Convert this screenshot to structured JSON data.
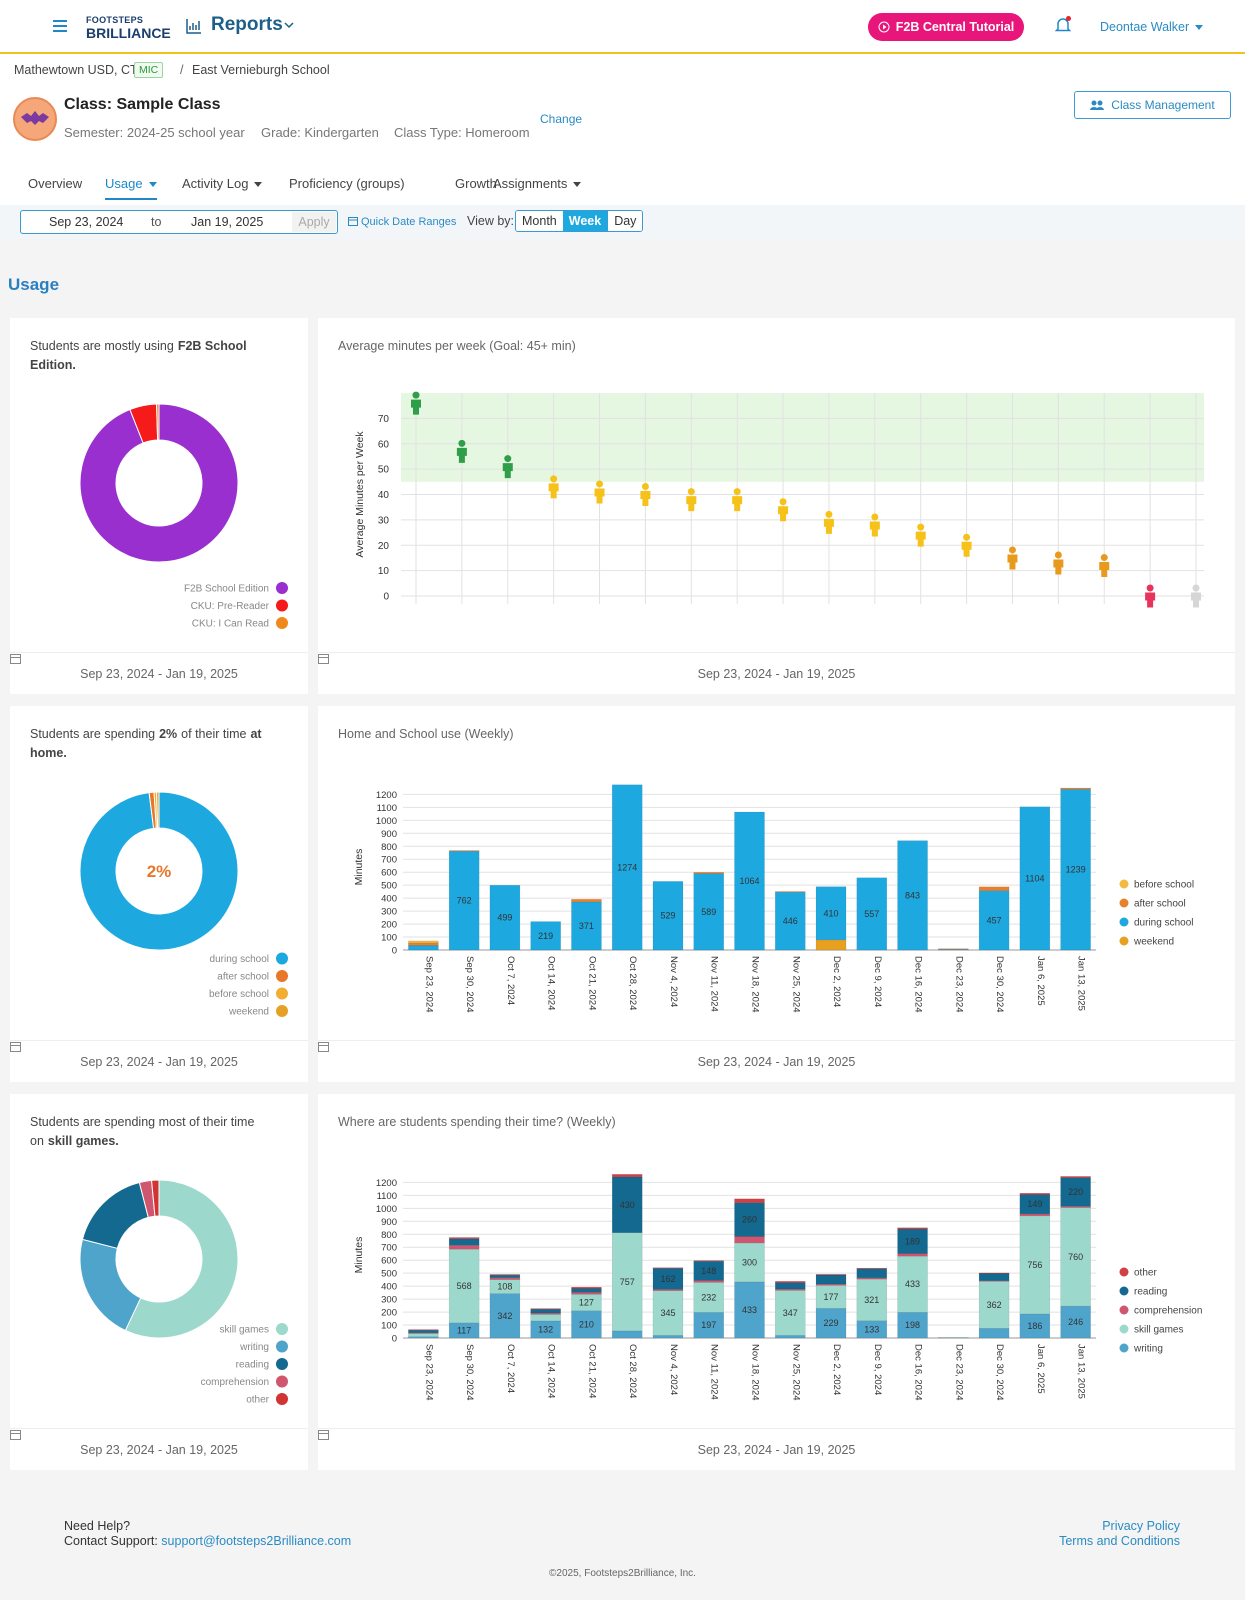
{
  "header": {
    "logo_top": "FOOTSTEPS",
    "logo_bottom": "BRILLIANCE",
    "reports": "Reports",
    "tutorial": "F2B Central Tutorial",
    "user": "Deontae Walker"
  },
  "breadcrumb": {
    "district": "Mathewtown USD, CT",
    "badge": "MIC",
    "separator": "/",
    "school": "East Vernieburgh School"
  },
  "class_info": {
    "title": "Class: Sample Class",
    "semester": "Semester: 2024-25 school year",
    "grade": "Grade: Kindergarten",
    "class_type": "Class Type: Homeroom",
    "change": "Change",
    "management": "Class Management"
  },
  "tabs": [
    "Overview",
    "Usage",
    "Activity Log",
    "Proficiency (groups)",
    "Growth",
    "Assignments"
  ],
  "filters": {
    "from": "Sep 23, 2024",
    "to_label": "to",
    "to": "Jan 19, 2025",
    "apply": "Apply",
    "quick": "Quick Date Ranges",
    "view_by": "View by:",
    "views": [
      "Month",
      "Week",
      "Day"
    ]
  },
  "section": "Usage",
  "chart_data": [
    {
      "type": "pie",
      "title": [
        "Students are mostly using",
        "F2B School Edition."
      ],
      "categories": [
        "F2B School Edition",
        "CKU: Pre-Reader",
        "CKU: I Can Read"
      ],
      "values": [
        94,
        5.5,
        0.5
      ],
      "colors": [
        "#9a2fcf",
        "#f51b1b",
        "#f0891d"
      ],
      "date_range": "Sep 23, 2024 - Jan 19, 2025"
    },
    {
      "type": "scatter",
      "title": "Average minutes per week (Goal: 45+ min)",
      "y_label": "Average Minutes per Week",
      "values": [
        76,
        57,
        51,
        43,
        41,
        40,
        38,
        38,
        34,
        29,
        28,
        24,
        20,
        15,
        13,
        12,
        0,
        0
      ],
      "colors": [
        "#2f9e4a",
        "#2f9e4a",
        "#2f9e4a",
        "#f6c21a",
        "#f6c21a",
        "#f6c21a",
        "#f6c21a",
        "#f6c21a",
        "#f6c21a",
        "#f6c21a",
        "#f6c21a",
        "#f6c21a",
        "#f6c21a",
        "#e89a1f",
        "#e89a1f",
        "#e89a1f",
        "#e8335c",
        "#d6d6d6"
      ],
      "goal": 45,
      "ylim": [
        0,
        80
      ],
      "yticks": [
        0,
        10,
        20,
        30,
        40,
        50,
        60,
        70
      ],
      "grid": true,
      "date_range": "Sep 23, 2024 - Jan 19, 2025"
    },
    {
      "type": "pie",
      "title": [
        "Students are spending",
        "2%",
        "of their time",
        "at home."
      ],
      "center_label": "2%",
      "categories": [
        "during school",
        "after school",
        "before school",
        "weekend"
      ],
      "values": [
        98,
        1,
        0.5,
        0.5
      ],
      "colors": [
        "#1ea8e0",
        "#e8772a",
        "#f2ae32",
        "#e6a026"
      ],
      "date_range": "Sep 23, 2024 - Jan 19, 2025"
    },
    {
      "type": "bar",
      "stacked": true,
      "title": "Home and School use (Weekly)",
      "y_label": "Minutes",
      "categories": [
        "Sep 23, 2024",
        "Sep 30, 2024",
        "Oct 7, 2024",
        "Oct 14, 2024",
        "Oct 21, 2024",
        "Oct 28, 2024",
        "Nov 4, 2024",
        "Nov 11, 2024",
        "Nov 18, 2024",
        "Nov 25, 2024",
        "Dec 2, 2024",
        "Dec 9, 2024",
        "Dec 16, 2024",
        "Dec 23, 2024",
        "Dec 30, 2024",
        "Jan 6, 2025",
        "Jan 13, 2025"
      ],
      "series": [
        {
          "name": "before school",
          "color": "#f5b942",
          "values": [
            15,
            0,
            0,
            0,
            0,
            0,
            0,
            0,
            0,
            0,
            0,
            0,
            0,
            0,
            0,
            0,
            0
          ]
        },
        {
          "name": "after school",
          "color": "#e8812d",
          "values": [
            20,
            5,
            0,
            0,
            20,
            0,
            0,
            10,
            0,
            5,
            0,
            0,
            0,
            5,
            30,
            0,
            10
          ]
        },
        {
          "name": "during school",
          "color": "#1ea8e0",
          "values": [
            35,
            762,
            499,
            219,
            371,
            1274,
            529,
            589,
            1064,
            446,
            410,
            557,
            843,
            5,
            457,
            1104,
            1239
          ]
        },
        {
          "name": "weekend",
          "color": "#e8a020",
          "values": [
            0,
            0,
            0,
            0,
            0,
            0,
            0,
            0,
            0,
            0,
            78,
            0,
            0,
            0,
            0,
            0,
            0
          ]
        }
      ],
      "ylim": [
        0,
        1280
      ],
      "yticks": [
        0,
        100,
        200,
        300,
        400,
        500,
        600,
        700,
        800,
        900,
        1000,
        1100,
        1200
      ],
      "grid": true,
      "date_range": "Sep 23, 2024 - Jan 19, 2025"
    },
    {
      "type": "pie",
      "title": [
        "Students are spending most of their time on",
        "skill games."
      ],
      "categories": [
        "skill games",
        "writing",
        "reading",
        "comprehension",
        "other"
      ],
      "values": [
        57,
        22,
        17,
        2.5,
        1.5
      ],
      "colors": [
        "#9dd8cc",
        "#4fa4cc",
        "#13698f",
        "#d0566f",
        "#d23333"
      ],
      "date_range": "Sep 23, 2024 - Jan 19, 2025"
    },
    {
      "type": "bar",
      "stacked": true,
      "title": "Where are students spending their time? (Weekly)",
      "y_label": "Minutes",
      "categories": [
        "Sep 23, 2024",
        "Sep 30, 2024",
        "Oct 7, 2024",
        "Oct 14, 2024",
        "Oct 21, 2024",
        "Oct 28, 2024",
        "Nov 4, 2024",
        "Nov 11, 2024",
        "Nov 18, 2024",
        "Nov 25, 2024",
        "Dec 2, 2024",
        "Dec 9, 2024",
        "Dec 16, 2024",
        "Dec 23, 2024",
        "Dec 30, 2024",
        "Jan 6, 2025",
        "Jan 13, 2025"
      ],
      "series": [
        {
          "name": "other",
          "color": "#d23f45",
          "values": [
            5,
            10,
            5,
            5,
            10,
            20,
            5,
            5,
            30,
            10,
            5,
            5,
            10,
            0,
            5,
            10,
            10
          ]
        },
        {
          "name": "reading",
          "color": "#13698f",
          "values": [
            20,
            50,
            20,
            30,
            30,
            430,
            162,
            148,
            260,
            50,
            70,
            70,
            189,
            0,
            55,
            149,
            220
          ]
        },
        {
          "name": "comprehension",
          "color": "#d0566f",
          "values": [
            5,
            30,
            15,
            10,
            15,
            0,
            10,
            15,
            50,
            10,
            10,
            10,
            20,
            0,
            5,
            15,
            10
          ]
        },
        {
          "name": "skill games",
          "color": "#9dd8cc",
          "values": [
            25,
            568,
            108,
            50,
            127,
            757,
            345,
            232,
            300,
            347,
            177,
            321,
            433,
            3,
            362,
            756,
            760
          ]
        },
        {
          "name": "writing",
          "color": "#4fa4cc",
          "values": [
            10,
            117,
            342,
            132,
            210,
            55,
            20,
            197,
            433,
            20,
            229,
            133,
            198,
            2,
            75,
            186,
            246
          ]
        }
      ],
      "ylim": [
        0,
        1280
      ],
      "yticks": [
        0,
        100,
        200,
        300,
        400,
        500,
        600,
        700,
        800,
        900,
        1000,
        1100,
        1200
      ],
      "grid": true,
      "date_range": "Sep 23, 2024 - Jan 19, 2025"
    }
  ],
  "footer": {
    "help": "Need Help?",
    "contact": "Contact Support:",
    "email": "support@footsteps2Brilliance.com",
    "privacy": "Privacy Policy",
    "terms": "Terms and Conditions",
    "copyright": "©2025, Footsteps2Brilliance, Inc."
  }
}
